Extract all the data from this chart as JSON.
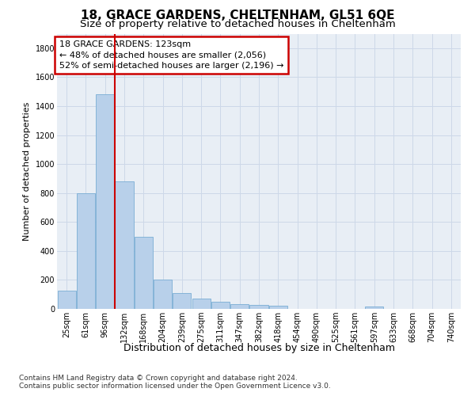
{
  "title": "18, GRACE GARDENS, CHELTENHAM, GL51 6QE",
  "subtitle": "Size of property relative to detached houses in Cheltenham",
  "xlabel": "Distribution of detached houses by size in Cheltenham",
  "ylabel": "Number of detached properties",
  "categories": [
    "25sqm",
    "61sqm",
    "96sqm",
    "132sqm",
    "168sqm",
    "204sqm",
    "239sqm",
    "275sqm",
    "311sqm",
    "347sqm",
    "382sqm",
    "418sqm",
    "454sqm",
    "490sqm",
    "525sqm",
    "561sqm",
    "597sqm",
    "633sqm",
    "668sqm",
    "704sqm",
    "740sqm"
  ],
  "values": [
    125,
    800,
    1480,
    880,
    495,
    205,
    110,
    70,
    48,
    35,
    27,
    22,
    0,
    0,
    0,
    0,
    18,
    0,
    0,
    0,
    0
  ],
  "bar_color": "#b8d0ea",
  "bar_edge_color": "#7aadd4",
  "vline_color": "#cc0000",
  "vline_x_index": 3,
  "annotation_title": "18 GRACE GARDENS: 123sqm",
  "annotation_line2": "← 48% of detached houses are smaller (2,056)",
  "annotation_line3": "52% of semi-detached houses are larger (2,196) →",
  "annotation_box_color": "#cc0000",
  "ylim": [
    0,
    1900
  ],
  "yticks": [
    0,
    200,
    400,
    600,
    800,
    1000,
    1200,
    1400,
    1600,
    1800
  ],
  "grid_color": "#cdd8e8",
  "background_color": "#e8eef5",
  "footer_line1": "Contains HM Land Registry data © Crown copyright and database right 2024.",
  "footer_line2": "Contains public sector information licensed under the Open Government Licence v3.0.",
  "title_fontsize": 11,
  "subtitle_fontsize": 9.5,
  "xlabel_fontsize": 9,
  "ylabel_fontsize": 8,
  "tick_fontsize": 7,
  "annotation_fontsize": 8,
  "footer_fontsize": 6.5
}
